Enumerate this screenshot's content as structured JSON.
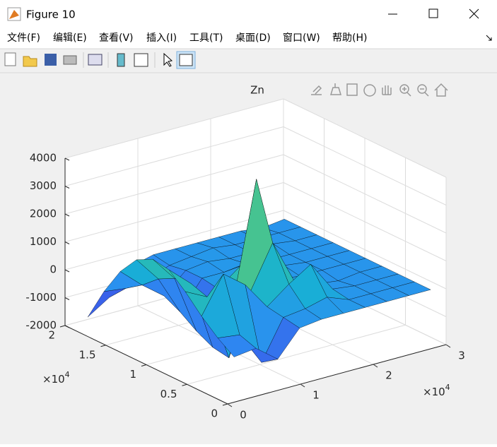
{
  "window": {
    "title": "Figure 10"
  },
  "menu": [
    "文件(F)",
    "编辑(E)",
    "查看(V)",
    "插入(I)",
    "工具(T)",
    "桌面(D)",
    "窗口(W)",
    "帮助(H)"
  ],
  "chart_data": {
    "type": "surface",
    "title": "Zn",
    "x": [
      2000,
      5000,
      8000,
      11000,
      14000,
      17000,
      20000,
      23000,
      26000,
      29000
    ],
    "y": [
      1000,
      3000,
      5000,
      7000,
      9000,
      11000,
      13000,
      15000,
      17000,
      19000
    ],
    "z": [
      [
        -600,
        -500,
        -1100,
        -200,
        -100,
        -100,
        -100,
        -100,
        -100,
        -100
      ],
      [
        -200,
        -300,
        -1500,
        -100,
        0,
        200,
        -100,
        -100,
        -100,
        -100
      ],
      [
        300,
        1600,
        1000,
        0,
        600,
        1100,
        0,
        -100,
        -100,
        -100
      ],
      [
        900,
        500,
        -1900,
        300,
        1800,
        200,
        -100,
        -200,
        -100,
        -100
      ],
      [
        1400,
        700,
        -1800,
        -100,
        3800,
        0,
        -100,
        -100,
        -100,
        -100
      ],
      [
        1500,
        600,
        -1500,
        -200,
        400,
        -100,
        0,
        -100,
        -100,
        -100
      ],
      [
        1200,
        300,
        -1100,
        -100,
        -100,
        0,
        -100,
        -100,
        -100,
        -100
      ],
      [
        500,
        -200,
        -800,
        -100,
        0,
        -100,
        -100,
        0,
        -100,
        -100
      ],
      [
        -500,
        -600,
        -500,
        -200,
        -100,
        0,
        -100,
        -100,
        -100,
        -100
      ],
      [
        -1700,
        -1200,
        -300,
        -100,
        -100,
        -100,
        -100,
        -100,
        -200,
        -100
      ]
    ],
    "xlim": [
      0,
      30000
    ],
    "ylim": [
      0,
      20000
    ],
    "zlim": [
      -2000,
      4000
    ],
    "xticks": [
      {
        "value": 0,
        "label": "0"
      },
      {
        "value": 10000,
        "label": "1"
      },
      {
        "value": 20000,
        "label": "2"
      },
      {
        "value": 30000,
        "label": "3"
      }
    ],
    "yticks": [
      {
        "value": 0,
        "label": "0"
      },
      {
        "value": 5000,
        "label": "0.5"
      },
      {
        "value": 10000,
        "label": "1"
      },
      {
        "value": 15000,
        "label": "1.5"
      },
      {
        "value": 20000,
        "label": "2"
      }
    ],
    "zticks": [
      -2000,
      -1000,
      0,
      1000,
      2000,
      3000,
      4000
    ],
    "x_multiplier": {
      "base": "×10",
      "exponent": "4"
    },
    "y_multiplier": {
      "base": "×10",
      "exponent": "4"
    },
    "grid": true,
    "colormap": [
      "#3e26a8",
      "#3a5de9",
      "#2c8ef2",
      "#17b1d3",
      "#3ac39a",
      "#9fc549",
      "#f0ba3a",
      "#f9fb0e"
    ],
    "edge_color": "#000000"
  }
}
